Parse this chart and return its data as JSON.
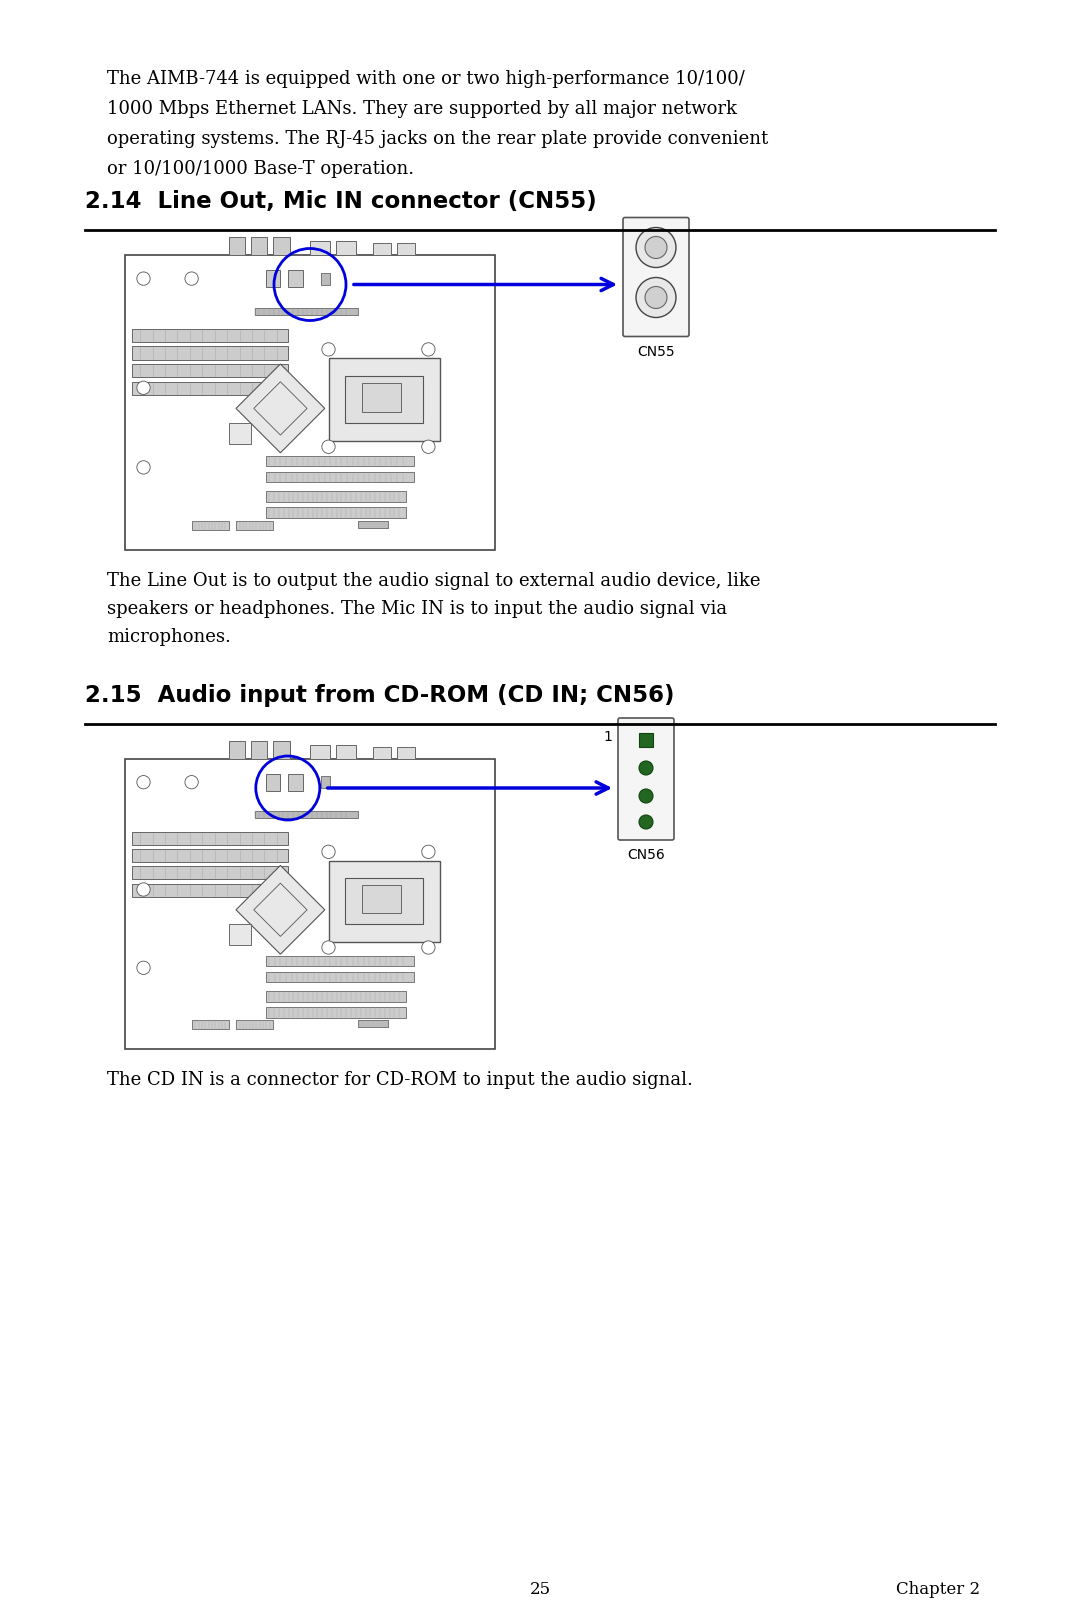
{
  "bg_color": "#ffffff",
  "intro_text_line1": "The AIMB-744 is equipped with one or two high-performance 10/100/",
  "intro_text_line2": "1000 Mbps Ethernet LANs. They are supported by all major network",
  "intro_text_line3": "operating systems. The RJ-45 jacks on the rear plate provide convenient",
  "intro_text_line4": "or 10/100/1000 Base-T operation.",
  "section1_title": "2.14  Line Out, Mic IN connector (CN55)",
  "section1_desc_line1": "The Line Out is to output the audio signal to external audio device, like",
  "section1_desc_line2": "speakers or headphones. The Mic IN is to input the audio signal via",
  "section1_desc_line3": "microphones.",
  "section2_title": "2.15  Audio input from CD-ROM (CD IN; CN56)",
  "section2_desc": "The CD IN is a connector for CD-ROM to input the audio signal.",
  "cn55_label": "CN55",
  "cn56_label": "CN56",
  "label_1": "1",
  "page_number": "25",
  "chapter_label": "Chapter 2",
  "arrow_color": "#0000dd",
  "circle_color": "#0000dd",
  "green_color": "#226622",
  "green_dark": "#114411",
  "text_color": "#000000",
  "board_edge": "#444444",
  "board_fill": "#ffffff",
  "slot_fill": "#cccccc",
  "slot_edge": "#666666",
  "component_fill": "#e8e8e8",
  "component_edge": "#555555"
}
